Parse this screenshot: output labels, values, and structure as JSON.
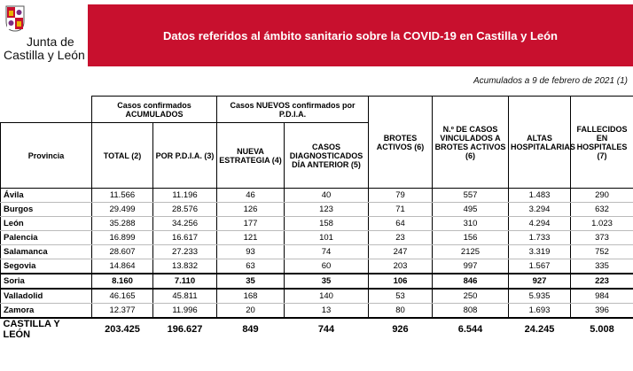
{
  "header": {
    "logo_text": [
      "Junta de",
      "Castilla y León"
    ],
    "title": "Datos referidos al ámbito sanitario sobre la COVID-19 en Castilla y León"
  },
  "date_note": "Acumulados a 9 de febrero de 2021 (1)",
  "table": {
    "group_headers": [
      "Casos confirmados ACUMULADOS",
      "Casos NUEVOS confirmados por P.D.I.A."
    ],
    "columns": [
      "Provincia",
      "TOTAL (2)",
      "POR P.D.I.A. (3)",
      "NUEVA ESTRATEGIA (4)",
      "CASOS DIAGNOSTICADOS DÍA ANTERIOR (5)",
      "BROTES ACTIVOS (6)",
      "N.º DE CASOS VINCULADOS A BROTES ACTIVOS (6)",
      "ALTAS HOSPITALARIAS",
      "FALLECIDOS EN HOSPITALES (7)"
    ],
    "rows": [
      [
        "Ávila",
        "11.566",
        "11.196",
        "46",
        "40",
        "79",
        "557",
        "1.483",
        "290"
      ],
      [
        "Burgos",
        "29.499",
        "28.576",
        "126",
        "123",
        "71",
        "495",
        "3.294",
        "632"
      ],
      [
        "León",
        "35.288",
        "34.256",
        "177",
        "158",
        "64",
        "310",
        "4.294",
        "1.023"
      ],
      [
        "Palencia",
        "16.899",
        "16.617",
        "121",
        "101",
        "23",
        "156",
        "1.733",
        "373"
      ],
      [
        "Salamanca",
        "28.607",
        "27.233",
        "93",
        "74",
        "247",
        "2125",
        "3.319",
        "752"
      ],
      [
        "Segovia",
        "14.864",
        "13.832",
        "63",
        "60",
        "203",
        "997",
        "1.567",
        "335"
      ],
      [
        "Soria",
        "8.160",
        "7.110",
        "35",
        "35",
        "106",
        "846",
        "927",
        "223"
      ],
      [
        "Valladolid",
        "46.165",
        "45.811",
        "168",
        "140",
        "53",
        "250",
        "5.935",
        "984"
      ],
      [
        "Zamora",
        "12.377",
        "11.996",
        "20",
        "13",
        "80",
        "808",
        "1.693",
        "396"
      ]
    ],
    "total": [
      "CASTILLA Y LEÓN",
      "203.425",
      "196.627",
      "849",
      "744",
      "926",
      "6.544",
      "24.245",
      "5.008"
    ]
  }
}
